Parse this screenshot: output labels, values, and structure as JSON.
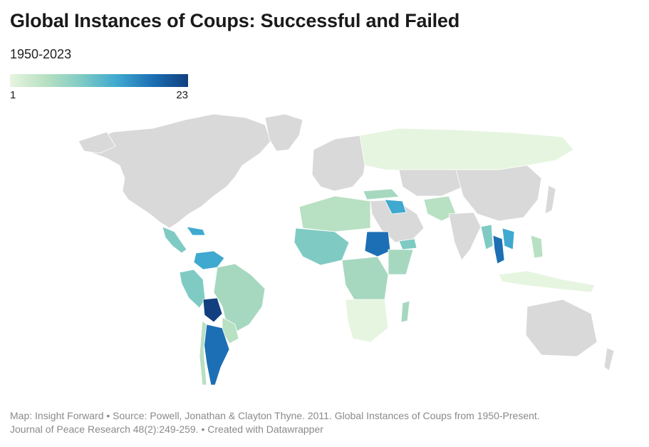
{
  "header": {
    "title": "Global Instances of Coups: Successful and Failed",
    "subtitle": "1950-2023"
  },
  "legend": {
    "min_label": "1",
    "max_label": "23",
    "min_value": 1,
    "max_value": 23,
    "scale_colors": [
      "#e6f5e0",
      "#b8e0c2",
      "#7fcbc4",
      "#3fa9cf",
      "#1c6fb4",
      "#113f7f"
    ],
    "no_data_color": "#d9d9d9"
  },
  "footer": {
    "line1": "Map: Insight Forward • Source: Powell, Jonathan & Clayton Thyne. 2011. Global Instances of Coups from 1950-Present.",
    "line2": "Journal of Peace Research 48(2):249-259. • Created with Datawrapper"
  }
}
